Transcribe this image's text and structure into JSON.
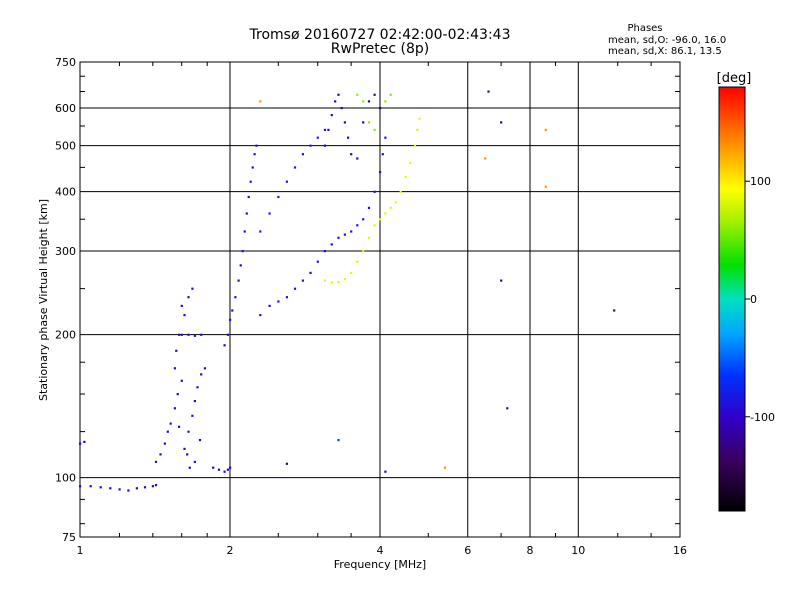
{
  "chart_data": {
    "type": "scatter",
    "title": "Tromsø 20160727 02:42:00-02:43:43",
    "subtitle": "RwPretec (8p)",
    "xlabel": "Frequency [MHz]",
    "ylabel": "Stationary phase Virtual Height [km]",
    "x_scale": "log",
    "y_scale": "log",
    "xlim": [
      1,
      16
    ],
    "ylim": [
      75,
      750
    ],
    "x_ticks": [
      1,
      2,
      4,
      6,
      8,
      10,
      16
    ],
    "x_tick_labels": [
      "1",
      "2",
      "4",
      "6",
      "8",
      "10",
      "16"
    ],
    "y_ticks": [
      75,
      100,
      200,
      300,
      400,
      500,
      600,
      750
    ],
    "y_tick_labels": [
      "75",
      "100",
      "200",
      "300",
      "400",
      "500",
      "600",
      "750"
    ],
    "grid": true,
    "phase_stats": {
      "heading": "Phases",
      "line_o": "mean, sd,O: -96.0, 16.0",
      "line_x": "mean, sd,X: 86.1, 13.5"
    },
    "colorbar": {
      "label": "[deg]",
      "range": [
        -180,
        180
      ],
      "ticks": [
        100,
        0,
        -100
      ],
      "tick_labels": [
        "100",
        "0",
        "-100"
      ]
    },
    "traces": [
      {
        "phase": -98,
        "points": [
          [
            1.0,
            96
          ],
          [
            1.05,
            96
          ],
          [
            1.1,
            95.5
          ],
          [
            1.15,
            95
          ],
          [
            1.2,
            94.5
          ],
          [
            1.25,
            94
          ],
          [
            1.3,
            95
          ],
          [
            1.35,
            95.5
          ],
          [
            1.4,
            96
          ],
          [
            1.42,
            96.5
          ]
        ]
      },
      {
        "phase": -100,
        "points": [
          [
            1.0,
            118
          ],
          [
            1.02,
            119
          ]
        ]
      },
      {
        "phase": -95,
        "points": [
          [
            1.42,
            108
          ],
          [
            1.45,
            112
          ],
          [
            1.48,
            118
          ],
          [
            1.5,
            125
          ],
          [
            1.52,
            130
          ],
          [
            1.55,
            140
          ],
          [
            1.57,
            150
          ],
          [
            1.6,
            160
          ],
          [
            1.62,
            115
          ],
          [
            1.65,
            125
          ],
          [
            1.68,
            135
          ],
          [
            1.7,
            145
          ],
          [
            1.72,
            155
          ],
          [
            1.75,
            165
          ],
          [
            1.78,
            170
          ],
          [
            1.66,
            105
          ],
          [
            1.7,
            108
          ],
          [
            1.64,
            112
          ],
          [
            1.74,
            120
          ],
          [
            1.58,
            128
          ]
        ]
      },
      {
        "phase": -95,
        "points": [
          [
            1.55,
            170
          ],
          [
            1.56,
            185
          ],
          [
            1.58,
            200
          ],
          [
            1.6,
            200
          ],
          [
            1.65,
            200
          ],
          [
            1.7,
            199
          ],
          [
            1.75,
            200
          ],
          [
            1.6,
            230
          ],
          [
            1.65,
            240
          ],
          [
            1.68,
            250
          ],
          [
            1.62,
            220
          ]
        ]
      },
      {
        "phase": -100,
        "points": [
          [
            1.85,
            105
          ],
          [
            1.9,
            104
          ],
          [
            1.95,
            103
          ],
          [
            1.98,
            104
          ],
          [
            2.0,
            105
          ]
        ]
      },
      {
        "phase": -95,
        "points": [
          [
            1.95,
            190
          ],
          [
            1.98,
            200
          ],
          [
            2.0,
            215
          ],
          [
            2.02,
            225
          ],
          [
            2.05,
            240
          ],
          [
            2.08,
            260
          ],
          [
            2.1,
            280
          ],
          [
            2.12,
            300
          ],
          [
            2.14,
            330
          ],
          [
            2.16,
            360
          ],
          [
            2.18,
            390
          ],
          [
            2.2,
            420
          ],
          [
            2.22,
            450
          ],
          [
            2.24,
            480
          ],
          [
            2.26,
            500
          ]
        ]
      },
      {
        "phase": -90,
        "points": [
          [
            2.3,
            220
          ],
          [
            2.4,
            230
          ],
          [
            2.5,
            235
          ],
          [
            2.6,
            240
          ],
          [
            2.7,
            250
          ],
          [
            2.8,
            260
          ],
          [
            2.9,
            270
          ],
          [
            3.0,
            285
          ],
          [
            3.1,
            300
          ],
          [
            3.2,
            310
          ],
          [
            3.3,
            320
          ],
          [
            3.4,
            325
          ],
          [
            3.5,
            330
          ],
          [
            3.6,
            340
          ],
          [
            3.7,
            350
          ],
          [
            3.8,
            370
          ],
          [
            3.9,
            400
          ],
          [
            4.0,
            440
          ],
          [
            4.05,
            480
          ],
          [
            4.1,
            520
          ]
        ]
      },
      {
        "phase": -80,
        "points": [
          [
            2.3,
            330
          ],
          [
            2.4,
            360
          ],
          [
            2.5,
            390
          ],
          [
            2.6,
            420
          ],
          [
            2.7,
            450
          ],
          [
            2.8,
            480
          ],
          [
            2.9,
            500
          ],
          [
            3.0,
            520
          ],
          [
            3.1,
            540
          ]
        ]
      },
      {
        "phase": -110,
        "points": [
          [
            3.1,
            500
          ],
          [
            3.15,
            540
          ],
          [
            3.2,
            580
          ],
          [
            3.25,
            620
          ],
          [
            3.3,
            640
          ],
          [
            3.35,
            600
          ],
          [
            3.4,
            560
          ],
          [
            3.45,
            520
          ],
          [
            3.5,
            480
          ],
          [
            3.6,
            470
          ],
          [
            3.7,
            560
          ],
          [
            3.8,
            620
          ],
          [
            3.9,
            640
          ],
          [
            4.0,
            600
          ]
        ]
      },
      {
        "phase": 85,
        "points": [
          [
            3.1,
            260
          ],
          [
            3.2,
            258
          ],
          [
            3.3,
            258
          ],
          [
            3.4,
            262
          ],
          [
            3.5,
            270
          ],
          [
            3.6,
            285
          ],
          [
            3.7,
            300
          ],
          [
            3.8,
            320
          ],
          [
            3.9,
            340
          ],
          [
            4.0,
            350
          ],
          [
            4.1,
            360
          ],
          [
            4.2,
            370
          ],
          [
            4.3,
            380
          ],
          [
            4.4,
            400
          ],
          [
            4.5,
            430
          ],
          [
            4.6,
            460
          ],
          [
            4.7,
            500
          ],
          [
            4.75,
            540
          ],
          [
            4.8,
            570
          ]
        ]
      },
      {
        "phase": 60,
        "points": [
          [
            3.6,
            640
          ],
          [
            3.7,
            620
          ],
          [
            3.8,
            560
          ],
          [
            3.9,
            540
          ],
          [
            4.1,
            620
          ],
          [
            4.2,
            640
          ]
        ]
      },
      {
        "phase": 130,
        "points": [
          [
            2.3,
            620
          ],
          [
            6.5,
            470
          ],
          [
            8.6,
            540
          ],
          [
            8.6,
            410
          ],
          [
            5.4,
            105
          ]
        ]
      },
      {
        "phase": -60,
        "points": [
          [
            3.3,
            120
          ]
        ]
      },
      {
        "phase": -120,
        "points": [
          [
            6.6,
            650
          ],
          [
            7.0,
            560
          ],
          [
            7.2,
            140
          ],
          [
            7.0,
            260
          ],
          [
            11.8,
            225
          ],
          [
            4.1,
            103
          ],
          [
            2.6,
            107
          ]
        ]
      }
    ]
  }
}
